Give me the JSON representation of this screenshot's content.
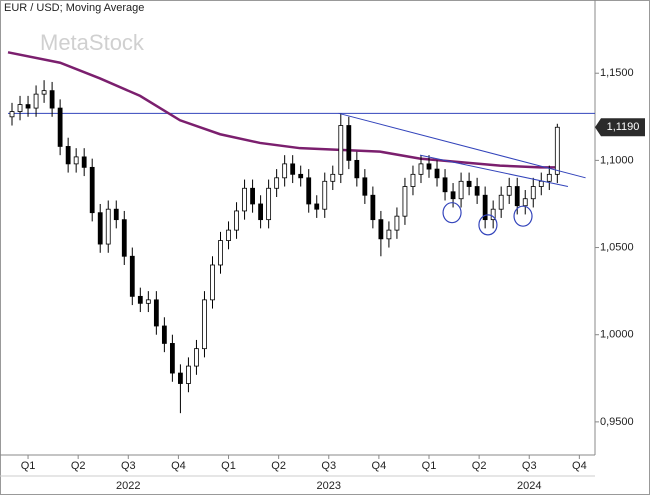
{
  "chart_data": {
    "type": "candlestick",
    "title": "EUR / USD; Moving Average",
    "watermark": "MetaStock",
    "xlim": [
      2021.9,
      2024.828
    ],
    "ylim": [
      0.931,
      1.192
    ],
    "xticks": [
      {
        "value": 2022.0,
        "label": "Q1"
      },
      {
        "value": 2022.25,
        "label": "Q2"
      },
      {
        "value": 2022.5,
        "label": "Q3"
      },
      {
        "value": 2022.75,
        "label": "Q4"
      },
      {
        "value": 2023.0,
        "label": "Q1"
      },
      {
        "value": 2023.25,
        "label": "Q2"
      },
      {
        "value": 2023.5,
        "label": "Q3"
      },
      {
        "value": 2023.75,
        "label": "Q4"
      },
      {
        "value": 2024.0,
        "label": "Q1"
      },
      {
        "value": 2024.25,
        "label": "Q2"
      },
      {
        "value": 2024.5,
        "label": "Q3"
      },
      {
        "value": 2024.75,
        "label": "Q4"
      }
    ],
    "year_ticks": [
      {
        "value": 2022.5,
        "label": "2022"
      },
      {
        "value": 2023.5,
        "label": "2023"
      },
      {
        "value": 2024.5,
        "label": "2024"
      }
    ],
    "yticks": [
      {
        "value": 0.95,
        "label": "0,9500"
      },
      {
        "value": 1.0,
        "label": "1,0000"
      },
      {
        "value": 1.05,
        "label": "1,0500"
      },
      {
        "value": 1.1,
        "label": "1,1000"
      },
      {
        "value": 1.15,
        "label": "1,1500"
      }
    ],
    "up_color": "#ffffff",
    "down_color": "#000000",
    "x": [
      2021.92,
      2021.96,
      2022.0,
      2022.04,
      2022.08,
      2022.12,
      2022.16,
      2022.2,
      2022.24,
      2022.28,
      2022.32,
      2022.36,
      2022.4,
      2022.44,
      2022.48,
      2022.52,
      2022.56,
      2022.6,
      2022.64,
      2022.68,
      2022.72,
      2022.76,
      2022.8,
      2022.84,
      2022.88,
      2022.92,
      2022.96,
      2023.0,
      2023.04,
      2023.08,
      2023.12,
      2023.16,
      2023.2,
      2023.24,
      2023.28,
      2023.32,
      2023.36,
      2023.4,
      2023.44,
      2023.48,
      2023.52,
      2023.56,
      2023.6,
      2023.64,
      2023.68,
      2023.72,
      2023.76,
      2023.8,
      2023.84,
      2023.88,
      2023.92,
      2023.96,
      2024.0,
      2024.04,
      2024.08,
      2024.12,
      2024.16,
      2024.2,
      2024.24,
      2024.28,
      2024.32,
      2024.36,
      2024.4,
      2024.44,
      2024.48,
      2024.52,
      2024.56,
      2024.6,
      2024.64
    ],
    "open": [
      1.125,
      1.128,
      1.132,
      1.13,
      1.138,
      1.14,
      1.13,
      1.108,
      1.098,
      1.102,
      1.096,
      1.07,
      1.052,
      1.072,
      1.066,
      1.045,
      1.022,
      1.018,
      1.02,
      1.005,
      0.995,
      0.978,
      0.972,
      0.982,
      0.992,
      1.02,
      1.04,
      1.054,
      1.06,
      1.071,
      1.084,
      1.075,
      1.066,
      1.084,
      1.09,
      1.098,
      1.092,
      1.09,
      1.075,
      1.072,
      1.088,
      1.092,
      1.12,
      1.1,
      1.09,
      1.08,
      1.066,
      1.055,
      1.06,
      1.068,
      1.085,
      1.092,
      1.098,
      1.095,
      1.09,
      1.082,
      1.078,
      1.088,
      1.085,
      1.08,
      1.066,
      1.072,
      1.08,
      1.085,
      1.074,
      1.078,
      1.085,
      1.088,
      1.092
    ],
    "high": [
      1.133,
      1.137,
      1.137,
      1.143,
      1.146,
      1.145,
      1.135,
      1.113,
      1.107,
      1.107,
      1.101,
      1.075,
      1.077,
      1.077,
      1.071,
      1.05,
      1.027,
      1.025,
      1.025,
      1.01,
      1.0,
      0.983,
      0.987,
      0.997,
      1.025,
      1.045,
      1.059,
      1.065,
      1.076,
      1.089,
      1.089,
      1.08,
      1.089,
      1.095,
      1.103,
      1.103,
      1.097,
      1.095,
      1.08,
      1.093,
      1.097,
      1.127,
      1.125,
      1.105,
      1.095,
      1.085,
      1.071,
      1.065,
      1.073,
      1.09,
      1.097,
      1.103,
      1.103,
      1.1,
      1.095,
      1.087,
      1.093,
      1.093,
      1.09,
      1.085,
      1.077,
      1.085,
      1.09,
      1.09,
      1.083,
      1.09,
      1.093,
      1.097,
      1.121
    ],
    "low": [
      1.12,
      1.123,
      1.125,
      1.125,
      1.133,
      1.125,
      1.103,
      1.093,
      1.093,
      1.091,
      1.065,
      1.047,
      1.047,
      1.061,
      1.04,
      1.017,
      1.013,
      1.013,
      1.0,
      0.99,
      0.973,
      0.955,
      0.967,
      0.977,
      0.987,
      1.015,
      1.035,
      1.049,
      1.055,
      1.066,
      1.07,
      1.061,
      1.061,
      1.079,
      1.085,
      1.087,
      1.085,
      1.07,
      1.067,
      1.067,
      1.083,
      1.087,
      1.095,
      1.085,
      1.075,
      1.061,
      1.045,
      1.05,
      1.055,
      1.063,
      1.08,
      1.087,
      1.09,
      1.085,
      1.077,
      1.073,
      1.073,
      1.08,
      1.075,
      1.061,
      1.061,
      1.067,
      1.075,
      1.069,
      1.069,
      1.073,
      1.08,
      1.083,
      1.087
    ],
    "close": [
      1.128,
      1.132,
      1.13,
      1.138,
      1.14,
      1.13,
      1.108,
      1.098,
      1.102,
      1.096,
      1.07,
      1.052,
      1.072,
      1.066,
      1.045,
      1.022,
      1.018,
      1.02,
      1.005,
      0.995,
      0.978,
      0.972,
      0.982,
      0.992,
      1.02,
      1.04,
      1.054,
      1.06,
      1.071,
      1.084,
      1.075,
      1.066,
      1.084,
      1.09,
      1.098,
      1.092,
      1.09,
      1.075,
      1.072,
      1.088,
      1.092,
      1.12,
      1.1,
      1.09,
      1.08,
      1.066,
      1.055,
      1.06,
      1.068,
      1.085,
      1.092,
      1.098,
      1.095,
      1.09,
      1.082,
      1.078,
      1.088,
      1.085,
      1.08,
      1.066,
      1.072,
      1.08,
      1.085,
      1.074,
      1.078,
      1.085,
      1.088,
      1.092,
      1.119
    ],
    "moving_average": {
      "color": "#7b1f6e",
      "x": [
        2021.9,
        2022.16,
        2022.359,
        2022.559,
        2022.758,
        2022.958,
        2023.157,
        2023.357,
        2023.556,
        2023.756,
        2023.955,
        2024.155,
        2024.354,
        2024.554,
        2024.633
      ],
      "values": [
        1.162,
        1.156,
        1.147,
        1.137,
        1.123,
        1.115,
        1.11,
        1.107,
        1.106,
        1.105,
        1.101,
        1.099,
        1.097,
        1.096,
        1.096
      ]
    },
    "horizontal_line": {
      "value": 1.127,
      "color": "#3344bb"
    },
    "trend_lines": [
      {
        "color": "#3344bb",
        "x": [
          2023.549,
          2024.781
        ],
        "values": [
          1.127,
          1.09
        ]
      },
      {
        "color": "#3344bb",
        "x": [
          2023.955,
          2024.693
        ],
        "values": [
          1.103,
          1.085
        ]
      }
    ],
    "circles": {
      "color": "#3344bb",
      "x": [
        2024.115,
        2024.294,
        2024.469
      ],
      "values": [
        1.07,
        1.063,
        1.068
      ]
    },
    "last_price": {
      "value": 1.119,
      "label": "1,1190"
    }
  }
}
